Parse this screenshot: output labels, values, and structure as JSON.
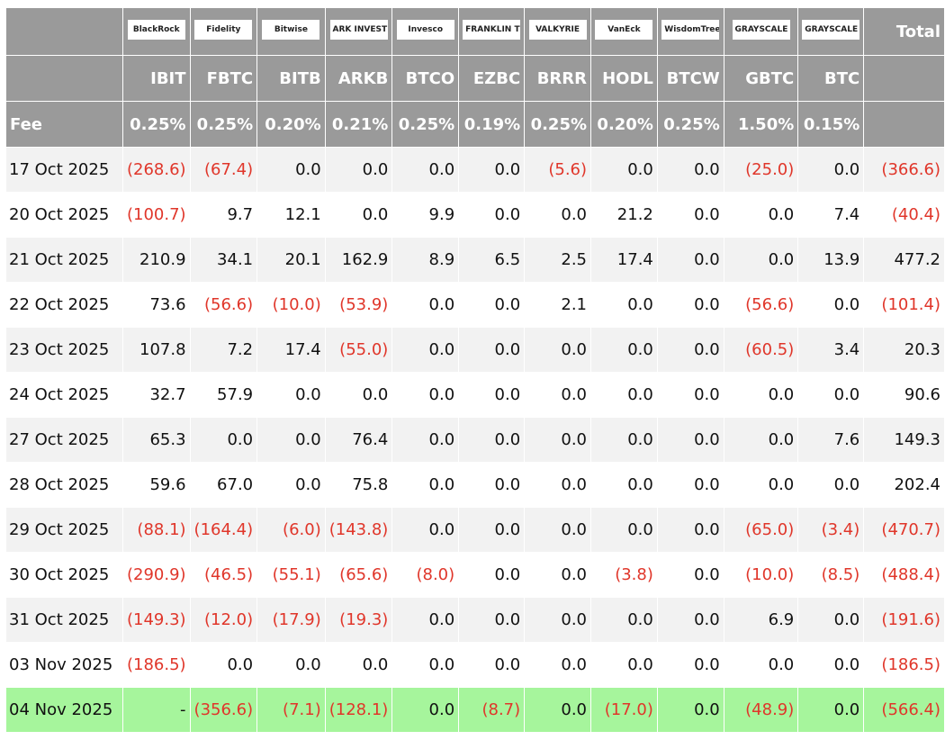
{
  "header": {
    "total": "Total",
    "fee_label": "Fee",
    "logos": [
      "BlackRock",
      "Fidelity",
      "Bitwise",
      "ARK INVEST",
      "Invesco",
      "FRANKLIN TEMPLETON",
      "VALKYRIE",
      "VanEck",
      "WisdomTree",
      "GRAYSCALE",
      "GRAYSCALE"
    ],
    "tickers": [
      "IBIT",
      "FBTC",
      "BITB",
      "ARKB",
      "BTCO",
      "EZBC",
      "BRRR",
      "HODL",
      "BTCW",
      "GBTC",
      "BTC"
    ],
    "fees": [
      "0.25%",
      "0.25%",
      "0.20%",
      "0.21%",
      "0.25%",
      "0.19%",
      "0.25%",
      "0.20%",
      "0.25%",
      "1.50%",
      "0.15%"
    ]
  },
  "table": {
    "rows": [
      [
        "17 Oct 2025",
        "(268.6)",
        "(67.4)",
        "0.0",
        "0.0",
        "0.0",
        "0.0",
        "(5.6)",
        "0.0",
        "0.0",
        "(25.0)",
        "0.0",
        "(366.6)"
      ],
      [
        "20 Oct 2025",
        "(100.7)",
        "9.7",
        "12.1",
        "0.0",
        "9.9",
        "0.0",
        "0.0",
        "21.2",
        "0.0",
        "0.0",
        "7.4",
        "(40.4)"
      ],
      [
        "21 Oct 2025",
        "210.9",
        "34.1",
        "20.1",
        "162.9",
        "8.9",
        "6.5",
        "2.5",
        "17.4",
        "0.0",
        "0.0",
        "13.9",
        "477.2"
      ],
      [
        "22 Oct 2025",
        "73.6",
        "(56.6)",
        "(10.0)",
        "(53.9)",
        "0.0",
        "0.0",
        "2.1",
        "0.0",
        "0.0",
        "(56.6)",
        "0.0",
        "(101.4)"
      ],
      [
        "23 Oct 2025",
        "107.8",
        "7.2",
        "17.4",
        "(55.0)",
        "0.0",
        "0.0",
        "0.0",
        "0.0",
        "0.0",
        "(60.5)",
        "3.4",
        "20.3"
      ],
      [
        "24 Oct 2025",
        "32.7",
        "57.9",
        "0.0",
        "0.0",
        "0.0",
        "0.0",
        "0.0",
        "0.0",
        "0.0",
        "0.0",
        "0.0",
        "90.6"
      ],
      [
        "27 Oct 2025",
        "65.3",
        "0.0",
        "0.0",
        "76.4",
        "0.0",
        "0.0",
        "0.0",
        "0.0",
        "0.0",
        "0.0",
        "7.6",
        "149.3"
      ],
      [
        "28 Oct 2025",
        "59.6",
        "67.0",
        "0.0",
        "75.8",
        "0.0",
        "0.0",
        "0.0",
        "0.0",
        "0.0",
        "0.0",
        "0.0",
        "202.4"
      ],
      [
        "29 Oct 2025",
        "(88.1)",
        "(164.4)",
        "(6.0)",
        "(143.8)",
        "0.0",
        "0.0",
        "0.0",
        "0.0",
        "0.0",
        "(65.0)",
        "(3.4)",
        "(470.7)"
      ],
      [
        "30 Oct 2025",
        "(290.9)",
        "(46.5)",
        "(55.1)",
        "(65.6)",
        "(8.0)",
        "0.0",
        "0.0",
        "(3.8)",
        "0.0",
        "(10.0)",
        "(8.5)",
        "(488.4)"
      ],
      [
        "31 Oct 2025",
        "(149.3)",
        "(12.0)",
        "(17.9)",
        "(19.3)",
        "0.0",
        "0.0",
        "0.0",
        "0.0",
        "0.0",
        "6.9",
        "0.0",
        "(191.6)"
      ],
      [
        "03 Nov 2025",
        "(186.5)",
        "0.0",
        "0.0",
        "0.0",
        "0.0",
        "0.0",
        "0.0",
        "0.0",
        "0.0",
        "0.0",
        "0.0",
        "(186.5)"
      ],
      [
        "04 Nov 2025",
        "-",
        "(356.6)",
        "(7.1)",
        "(128.1)",
        "0.0",
        "(8.7)",
        "0.0",
        "(17.0)",
        "0.0",
        "(48.9)",
        "0.0",
        "(566.4)"
      ]
    ]
  }
}
